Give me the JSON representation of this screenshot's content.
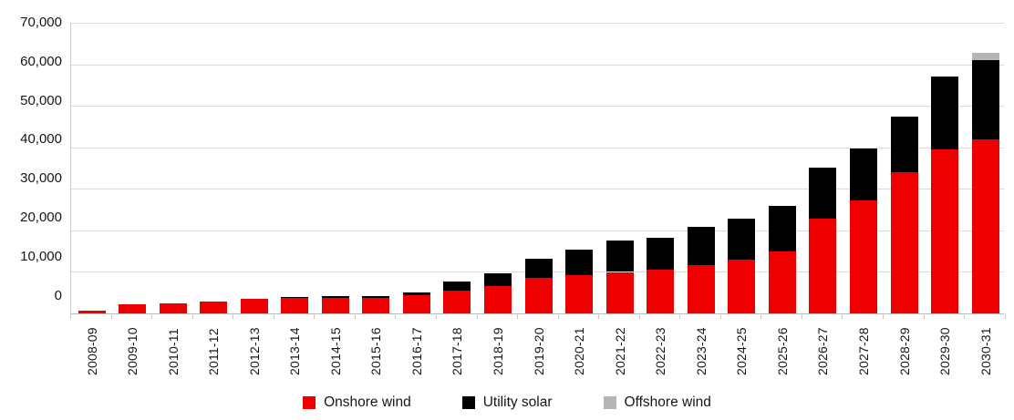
{
  "chart_data": {
    "type": "bar",
    "stacked": true,
    "title": "",
    "categories": [
      "2008-09",
      "2009-10",
      "2010-11",
      "2011-12",
      "2012-13",
      "2013-14",
      "2014-15",
      "2015-16",
      "2016-17",
      "2017-18",
      "2018-19",
      "2019-20",
      "2020-21",
      "2021-22",
      "2022-23",
      "2023-24",
      "2024-25",
      "2025-26",
      "2026-27",
      "2027-28",
      "2028-29",
      "2029-30",
      "2030-31"
    ],
    "series": [
      {
        "name": "Onshore wind",
        "color": "#ee0000",
        "values": [
          700,
          2100,
          2300,
          2850,
          3400,
          3600,
          3750,
          3700,
          4400,
          5450,
          6550,
          8450,
          9150,
          9950,
          10400,
          11500,
          12850,
          14800,
          22750,
          27300,
          34050,
          39550,
          42000
        ]
      },
      {
        "name": "Utility solar",
        "color": "#000000",
        "values": [
          0,
          0,
          0,
          0,
          0,
          250,
          400,
          500,
          550,
          2200,
          3000,
          4700,
          6150,
          7550,
          7900,
          9300,
          9900,
          11050,
          12400,
          12400,
          13250,
          17600,
          19000
        ]
      },
      {
        "name": "Offshore wind",
        "color": "#b5b5b5",
        "values": [
          0,
          0,
          0,
          0,
          0,
          0,
          0,
          0,
          0,
          0,
          0,
          0,
          0,
          0,
          0,
          0,
          0,
          0,
          0,
          0,
          0,
          0,
          1800
        ]
      }
    ],
    "xlabel": "",
    "ylabel": "",
    "ylim": [
      0,
      70000
    ],
    "ytick_step": 10000,
    "ytick_labels": [
      "0",
      "10,000",
      "20,000",
      "30,000",
      "40,000",
      "50,000",
      "60,000",
      "70,000"
    ],
    "grid": true,
    "legend_position": "bottom",
    "colors": {
      "onshore_wind": "#ee0000",
      "utility_solar": "#000000",
      "offshore_wind": "#b5b5b5",
      "gridline": "#dcdcdc",
      "axis_line": "#bdbdbd",
      "text": "#161616"
    }
  }
}
